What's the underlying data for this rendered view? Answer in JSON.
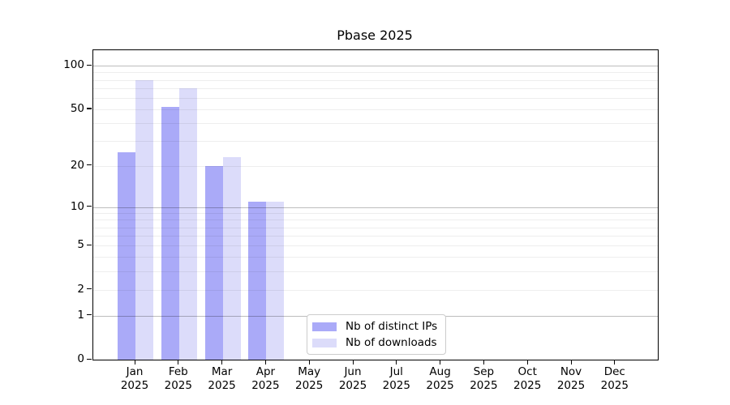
{
  "page": {
    "background": "#ffffff"
  },
  "chart_data": {
    "type": "bar",
    "title": "Pbase 2025",
    "categories": [
      "Jan",
      "Feb",
      "Mar",
      "Apr",
      "May",
      "Jun",
      "Jul",
      "Aug",
      "Sep",
      "Oct",
      "Nov",
      "Dec"
    ],
    "category_year_label": "2025",
    "series": [
      {
        "name": "Nb of distinct IPs",
        "color": "#aaaaf8",
        "values": [
          25,
          52,
          20,
          11,
          0,
          0,
          0,
          0,
          0,
          0,
          0,
          0
        ]
      },
      {
        "name": "Nb of downloads",
        "color": "#dcdcfa",
        "values": [
          80,
          70,
          23,
          11,
          0,
          0,
          0,
          0,
          0,
          0,
          0,
          0
        ]
      }
    ],
    "xlabel": "",
    "ylabel": "",
    "y_scale": "log1p",
    "ylim": [
      0,
      128
    ],
    "y_tick_labels": [
      0,
      1,
      2,
      5,
      10,
      20,
      50,
      100
    ],
    "y_major_gridlines": [
      1,
      10,
      100
    ],
    "y_minor_gridlines": [
      2,
      3,
      4,
      5,
      6,
      7,
      8,
      9,
      20,
      30,
      40,
      50,
      60,
      70,
      80,
      90
    ],
    "grid": true,
    "legend_position": "bottom-center",
    "frame_color": "#000000",
    "major_grid_color": "#bdbdbd",
    "minor_grid_color": "#efefef"
  }
}
